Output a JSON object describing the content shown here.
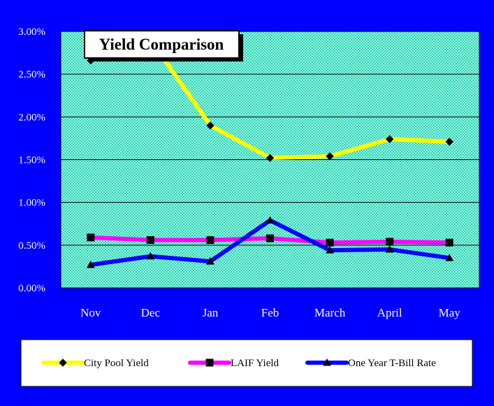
{
  "chart_data": {
    "type": "line",
    "title": "Yield Comparison",
    "categories": [
      "Nov",
      "Dec",
      "Jan",
      "Feb",
      "March",
      "April",
      "May"
    ],
    "y_ticks": [
      "0.00%",
      "0.50%",
      "1.00%",
      "1.50%",
      "2.00%",
      "2.50%",
      "3.00%"
    ],
    "ylim": [
      0,
      3
    ],
    "grid": "horizontal",
    "legend_position": "bottom",
    "series": [
      {
        "name": "City Pool Yield",
        "color": "#ffff00",
        "marker": "diamond",
        "values": [
          2.66,
          2.9,
          1.9,
          1.52,
          1.54,
          1.74,
          1.71
        ]
      },
      {
        "name": "LAIF Yield",
        "color": "#ff00ff",
        "marker": "square",
        "values": [
          0.59,
          0.56,
          0.56,
          0.58,
          0.53,
          0.54,
          0.53
        ]
      },
      {
        "name": "One Year T-Bill Rate",
        "color": "#0000ff",
        "marker": "triangle",
        "values": [
          0.27,
          0.37,
          0.31,
          0.79,
          0.44,
          0.45,
          0.35
        ]
      }
    ],
    "colors": {
      "background": "#0000ff",
      "plot_area": "#33cccc",
      "plot_pattern": "#99ffcc",
      "gridline": "#000000",
      "marker_fill": "#000000"
    }
  }
}
